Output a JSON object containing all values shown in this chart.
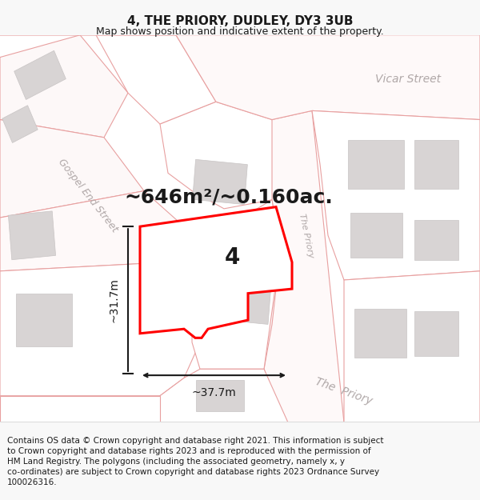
{
  "title": "4, THE PRIORY, DUDLEY, DY3 3UB",
  "subtitle": "Map shows position and indicative extent of the property.",
  "area_label": "~646m²/~0.160ac.",
  "width_label": "~37.7m",
  "height_label": "~31.7m",
  "number_label": "4",
  "footer_lines": [
    "Contains OS data © Crown copyright and database right 2021. This information is subject",
    "to Crown copyright and database rights 2023 and is reproduced with the permission of",
    "HM Land Registry. The polygons (including the associated geometry, namely x, y",
    "co-ordinates) are subject to Crown copyright and database rights 2023 Ordnance Survey",
    "100026316."
  ],
  "map_bg": "#ffffff",
  "fig_bg": "#f8f8f8",
  "parcel_edge": "#e8a0a0",
  "parcel_fill": "#ffffff",
  "building_fill": "#d8d4d4",
  "building_edge": "#c8c4c4",
  "plot_edge": "#ff0000",
  "plot_fill": "#ffffff",
  "road_fill": "#f5f0f0",
  "street_label_color": "#b0a8a8",
  "dim_color": "#1a1a1a",
  "text_color": "#1a1a1a",
  "title_fontsize": 11,
  "subtitle_fontsize": 9,
  "area_fontsize": 18,
  "number_fontsize": 20,
  "street_fontsize": 9,
  "dim_fontsize": 10,
  "footer_fontsize": 7.5
}
